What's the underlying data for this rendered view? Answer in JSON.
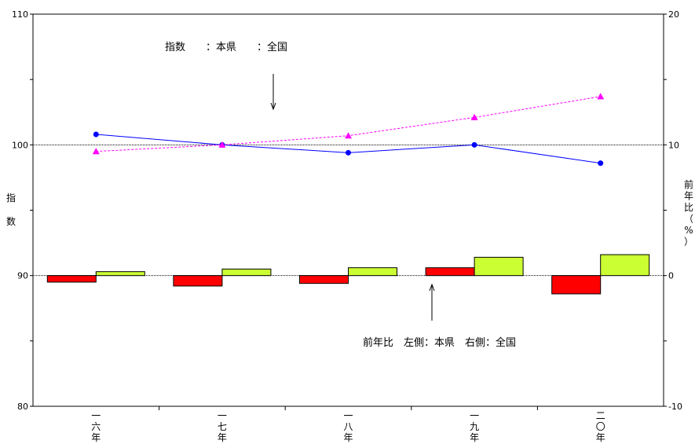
{
  "chart_data": {
    "type": "bar+line",
    "categories": [
      "一\n六\n年",
      "一\n七\n年",
      "一\n八\n年",
      "一\n九\n年",
      "二\n〇\n年"
    ],
    "left_axis": {
      "label": "指数",
      "ylim": [
        80,
        110
      ],
      "ticks": [
        80,
        90,
        100,
        110
      ]
    },
    "right_axis": {
      "label": "前年比（%）",
      "ylim": [
        -10,
        20
      ],
      "ticks": [
        -10,
        0,
        10,
        20
      ]
    },
    "line_series": [
      {
        "name": "本県",
        "axis": "left",
        "color": "#0000ff",
        "marker": "circle",
        "values": [
          100.8,
          100.0,
          99.4,
          100.0,
          98.6
        ]
      },
      {
        "name": "全国",
        "axis": "left",
        "color": "#ff00ff",
        "marker": "triangle",
        "dash": true,
        "values": [
          99.5,
          100.0,
          100.7,
          102.1,
          103.7
        ]
      }
    ],
    "bar_series": [
      {
        "name": "本県",
        "axis": "right",
        "color": "#ff0000",
        "values": [
          -0.5,
          -0.8,
          -0.6,
          0.6,
          -1.4
        ]
      },
      {
        "name": "全国",
        "axis": "right",
        "color": "#ccff33",
        "values": [
          0.3,
          0.5,
          0.6,
          1.4,
          1.6
        ]
      }
    ],
    "reference_lines": [
      100,
      90
    ],
    "annotations": {
      "index_legend": "指数　　：本県　　：全国",
      "yoy_legend": "前年比　左側：本県　右側：全国"
    }
  }
}
